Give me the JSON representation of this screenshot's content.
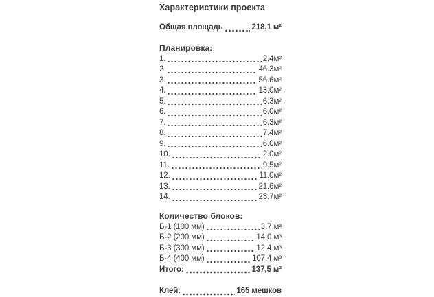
{
  "title": "Характеристики проекта",
  "total_area": {
    "label": "Общая площадь",
    "value": "218,1 м²"
  },
  "layout": {
    "header": "Планировка:",
    "items": [
      {
        "num": "1.",
        "value": "2.4м²"
      },
      {
        "num": "2.",
        "value": "46.3м²"
      },
      {
        "num": "3.",
        "value": "56.6м²"
      },
      {
        "num": "4.",
        "value": "13.0м²"
      },
      {
        "num": "5.",
        "value": "6.3м²"
      },
      {
        "num": "6.",
        "value": "6.0м²"
      },
      {
        "num": "7.",
        "value": "6.3м²"
      },
      {
        "num": "8.",
        "value": "7.4м²"
      },
      {
        "num": "9.",
        "value": "6.0м²"
      },
      {
        "num": "10.",
        "value": "2.0м²"
      },
      {
        "num": "11.",
        "value": "9.5м²"
      },
      {
        "num": "12.",
        "value": "11.0м²"
      },
      {
        "num": "13.",
        "value": "21.6м²"
      },
      {
        "num": "14.",
        "value": "23.7м²"
      }
    ]
  },
  "blocks": {
    "header": "Количество блоков:",
    "items": [
      {
        "label": "Б-1 (100 мм)",
        "value": "3,7 м³"
      },
      {
        "label": "Б-2 (200 мм)",
        "value": "14,0 м³"
      },
      {
        "label": "Б-3 (300 мм)",
        "value": "12,4 м³"
      },
      {
        "label": "Б-4 (400 мм)",
        "value": "107,4 м³"
      }
    ],
    "total": {
      "label": "Итого:",
      "value": "137,5 м³"
    }
  },
  "glue": {
    "label": "Клей:",
    "value": "165 мешков"
  }
}
